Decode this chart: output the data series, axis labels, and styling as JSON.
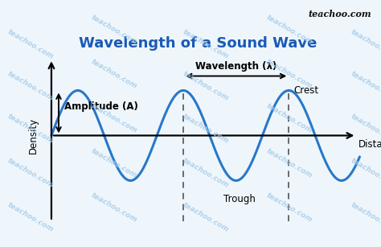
{
  "title": "Wavelength of a Sound Wave",
  "title_color": "#1a5ab5",
  "title_fontsize": 13,
  "wave_color": "#2878c8",
  "wave_linewidth": 2.2,
  "amplitude": 1.0,
  "period": 2.0,
  "axis_color": "#000000",
  "ylabel": "Density",
  "xlabel": "Distance",
  "amplitude_label": "Amplitude (A)",
  "wavelength_label": "Wavelength (λ)",
  "crest_label": "Crest",
  "trough_label": "Trough",
  "background_color": "#eef6fc",
  "watermark_color": "#a8cce8",
  "watermark_text": "teachoo.com",
  "brand_text": "teachoo.com",
  "dashed_color": "#444444",
  "arrow_color": "#000000",
  "label_fontsize": 8.5,
  "brand_fontsize": 8
}
